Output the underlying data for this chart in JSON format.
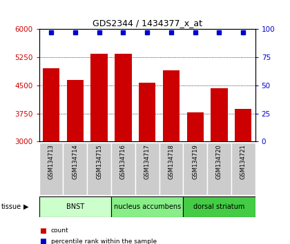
{
  "title": "GDS2344 / 1434377_x_at",
  "samples": [
    "GSM134713",
    "GSM134714",
    "GSM134715",
    "GSM134716",
    "GSM134717",
    "GSM134718",
    "GSM134719",
    "GSM134720",
    "GSM134721"
  ],
  "counts": [
    4950,
    4650,
    5350,
    5350,
    4570,
    4900,
    3780,
    4420,
    3870
  ],
  "percentiles": [
    100,
    100,
    100,
    100,
    100,
    100,
    100,
    100,
    100
  ],
  "bar_color": "#cc0000",
  "pct_color": "#0000cc",
  "ylim_left": [
    3000,
    6000
  ],
  "ylim_right": [
    0,
    100
  ],
  "yticks_left": [
    3000,
    3750,
    4500,
    5250,
    6000
  ],
  "yticks_right": [
    0,
    25,
    50,
    75,
    100
  ],
  "tissue_groups": [
    {
      "label": "BNST",
      "start": 0,
      "end": 2,
      "color": "#ccffcc"
    },
    {
      "label": "nucleus accumbens",
      "start": 3,
      "end": 5,
      "color": "#88ee88"
    },
    {
      "label": "dorsal striatum",
      "start": 6,
      "end": 8,
      "color": "#44cc44"
    }
  ],
  "legend_items": [
    {
      "label": "count",
      "color": "#cc0000"
    },
    {
      "label": "percentile rank within the sample",
      "color": "#0000cc"
    }
  ],
  "xlabel_color": "#cc0000",
  "right_axis_color": "#0000cc",
  "bar_width": 0.7,
  "xtick_box_color": "#cccccc",
  "xtick_fontsize": 6,
  "title_fontsize": 9,
  "ytick_fontsize": 7.5,
  "tissue_fontsize": 7,
  "legend_fontsize": 6.5
}
